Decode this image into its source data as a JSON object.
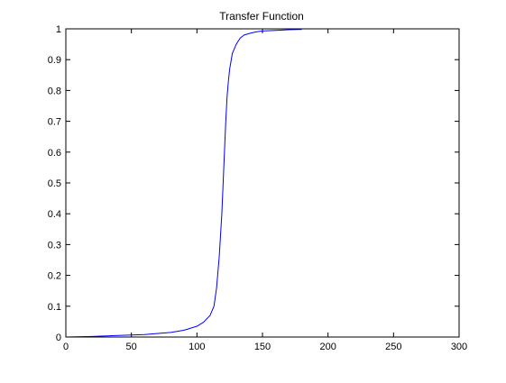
{
  "chart_data": {
    "type": "line",
    "title": "Transfer Function",
    "xlabel": "",
    "ylabel": "",
    "xlim": [
      0,
      300
    ],
    "ylim": [
      0,
      1
    ],
    "xticks": [
      0,
      50,
      100,
      150,
      200,
      250,
      300
    ],
    "yticks": [
      0,
      0.1,
      0.2,
      0.3,
      0.4,
      0.5,
      0.6,
      0.7,
      0.8,
      0.9,
      1
    ],
    "xtick_labels": [
      "0",
      "50",
      "100",
      "150",
      "200",
      "250",
      "300"
    ],
    "ytick_labels": [
      "0",
      "0.1",
      "0.2",
      "0.3",
      "0.4",
      "0.5",
      "0.6",
      "0.7",
      "0.8",
      "0.9",
      "1"
    ],
    "grid": false,
    "legend": "none",
    "series": [
      {
        "color": "#0000ff",
        "x": [
          0,
          20,
          40,
          60,
          80,
          90,
          100,
          105,
          110,
          113,
          115,
          117,
          119,
          120,
          121,
          122,
          123,
          124,
          125,
          127,
          130,
          133,
          136,
          140,
          145,
          150,
          160,
          170,
          180
        ],
        "y": [
          0.0,
          0.002,
          0.005,
          0.008,
          0.015,
          0.022,
          0.035,
          0.048,
          0.07,
          0.1,
          0.16,
          0.26,
          0.4,
          0.5,
          0.6,
          0.7,
          0.78,
          0.83,
          0.87,
          0.92,
          0.95,
          0.97,
          0.98,
          0.985,
          0.99,
          0.993,
          0.995,
          0.997,
          0.998
        ]
      }
    ]
  }
}
